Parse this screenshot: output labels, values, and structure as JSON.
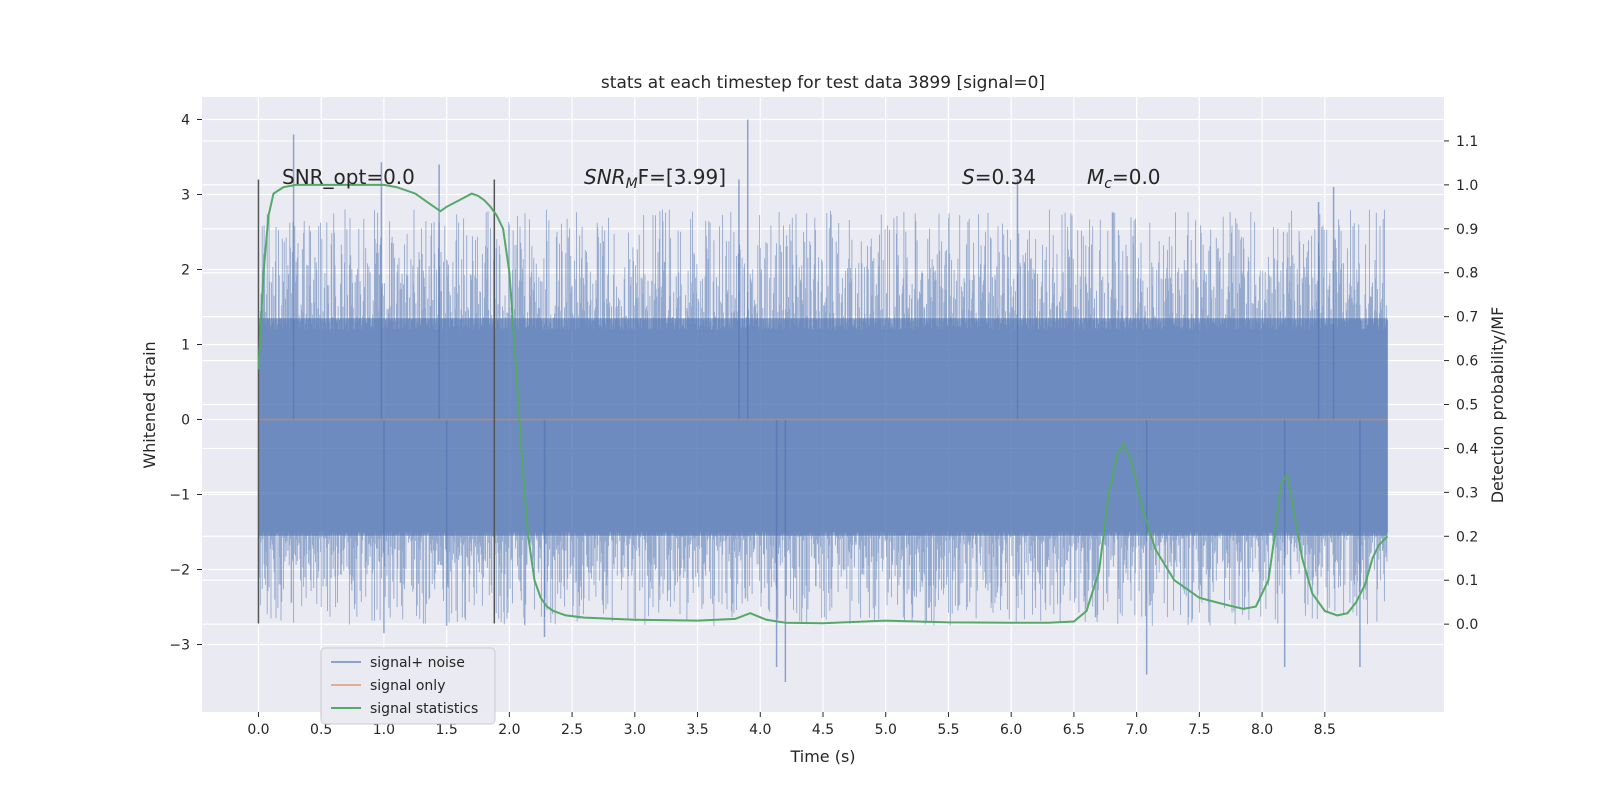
{
  "chart_data": {
    "type": "line",
    "title": "stats at each timestep for test data 3899 [signal=0]",
    "xlabel": "Time (s)",
    "ylabel": "Whitened strain",
    "ylabel_right": "Detection probability/MF",
    "xlim": [
      -0.45,
      9.45
    ],
    "ylim": [
      -3.9,
      4.3
    ],
    "ylim_right": [
      -0.2,
      1.2
    ],
    "x_ticks": [
      0.0,
      0.5,
      1.0,
      1.5,
      2.0,
      2.5,
      3.0,
      3.5,
      4.0,
      4.5,
      5.0,
      5.5,
      6.0,
      6.5,
      7.0,
      7.5,
      8.0,
      8.5
    ],
    "x_tick_labels": [
      "0.0",
      "0.5",
      "1.0",
      "1.5",
      "2.0",
      "2.5",
      "3.0",
      "3.5",
      "4.0",
      "4.5",
      "5.0",
      "5.5",
      "6.0",
      "6.5",
      "7.0",
      "7.5",
      "8.0",
      "8.5"
    ],
    "y_ticks": [
      4,
      3,
      2,
      1,
      0,
      -1,
      -2,
      -3
    ],
    "y_tick_labels": [
      "4",
      "3",
      "2",
      "1",
      "0",
      "−1",
      "−2",
      "−3"
    ],
    "y_ticks_right": [
      1.1,
      1.0,
      0.9,
      0.8,
      0.7,
      0.6,
      0.5,
      0.4,
      0.3,
      0.2,
      0.1,
      0.0
    ],
    "y_tick_labels_right": [
      "1.1",
      "1.0",
      "0.9",
      "0.8",
      "0.7",
      "0.6",
      "0.5",
      "0.4",
      "0.3",
      "0.2",
      "0.1",
      "0.0"
    ],
    "grid": true,
    "legend_position": "lower-left",
    "annotations": {
      "snr_opt": "SNR_opt=0.0",
      "snr_mf_main": "SNR",
      "snr_mf_sub": "M",
      "snr_mf_rest": "F=[3.99]",
      "s_var": "S",
      "s_rest": "=0.34",
      "mc_main": "M",
      "mc_sub": "c",
      "mc_rest": "=0.0"
    },
    "markers": {
      "vlines_x": [
        0.0,
        1.88
      ],
      "vline_range": [
        -2.72,
        3.2
      ]
    },
    "series": [
      {
        "name": "signal+ noise",
        "color": "#4c72b0",
        "axis": "left",
        "kind": "dense-noise",
        "x_range": [
          0.0,
          9.0
        ],
        "band": [
          -1.55,
          1.35
        ],
        "extreme_peaks": [
          {
            "x": 0.28,
            "y": 3.8
          },
          {
            "x": 0.98,
            "y": 3.43
          },
          {
            "x": 1.44,
            "y": 3.4
          },
          {
            "x": 3.9,
            "y": 4.0
          },
          {
            "x": 3.83,
            "y": 3.2
          },
          {
            "x": 6.05,
            "y": 3.2
          },
          {
            "x": 8.57,
            "y": 3.1
          },
          {
            "x": 8.45,
            "y": 2.9
          },
          {
            "x": 4.13,
            "y": -3.3
          },
          {
            "x": 4.2,
            "y": -3.5
          },
          {
            "x": 7.08,
            "y": -3.4
          },
          {
            "x": 8.18,
            "y": -3.3
          },
          {
            "x": 8.78,
            "y": -3.3
          },
          {
            "x": 1.0,
            "y": -2.85
          },
          {
            "x": 2.28,
            "y": -2.9
          },
          {
            "x": 1.5,
            "y": -2.75
          }
        ]
      },
      {
        "name": "signal only",
        "color": "#dd8452",
        "axis": "left",
        "x": [
          0.0,
          9.0
        ],
        "y": [
          0.0,
          0.0
        ]
      },
      {
        "name": "signal statistics",
        "color": "#55a868",
        "axis": "right",
        "x": [
          0.0,
          0.04,
          0.08,
          0.12,
          0.2,
          0.3,
          0.5,
          0.8,
          1.0,
          1.1,
          1.25,
          1.35,
          1.45,
          1.5,
          1.6,
          1.7,
          1.75,
          1.8,
          1.85,
          1.9,
          1.95,
          2.0,
          2.05,
          2.1,
          2.15,
          2.2,
          2.25,
          2.3,
          2.35,
          2.45,
          2.6,
          3.0,
          3.5,
          3.8,
          3.92,
          4.05,
          4.2,
          4.5,
          5.0,
          5.5,
          6.0,
          6.3,
          6.5,
          6.6,
          6.7,
          6.78,
          6.85,
          6.9,
          6.96,
          7.05,
          7.15,
          7.3,
          7.5,
          7.7,
          7.85,
          7.95,
          8.05,
          8.1,
          8.15,
          8.2,
          8.25,
          8.32,
          8.4,
          8.5,
          8.6,
          8.68,
          8.75,
          8.82,
          8.88,
          8.93,
          9.0
        ],
        "y": [
          0.58,
          0.8,
          0.93,
          0.98,
          0.995,
          1.0,
          1.0,
          1.0,
          1.0,
          0.995,
          0.98,
          0.96,
          0.94,
          0.95,
          0.965,
          0.98,
          0.975,
          0.965,
          0.95,
          0.93,
          0.9,
          0.8,
          0.6,
          0.38,
          0.2,
          0.1,
          0.06,
          0.04,
          0.03,
          0.02,
          0.015,
          0.01,
          0.008,
          0.012,
          0.025,
          0.01,
          0.003,
          0.002,
          0.008,
          0.004,
          0.003,
          0.003,
          0.006,
          0.03,
          0.12,
          0.3,
          0.39,
          0.41,
          0.37,
          0.26,
          0.17,
          0.1,
          0.06,
          0.045,
          0.035,
          0.04,
          0.1,
          0.2,
          0.32,
          0.34,
          0.26,
          0.15,
          0.07,
          0.03,
          0.02,
          0.025,
          0.05,
          0.09,
          0.15,
          0.18,
          0.2
        ]
      }
    ]
  }
}
